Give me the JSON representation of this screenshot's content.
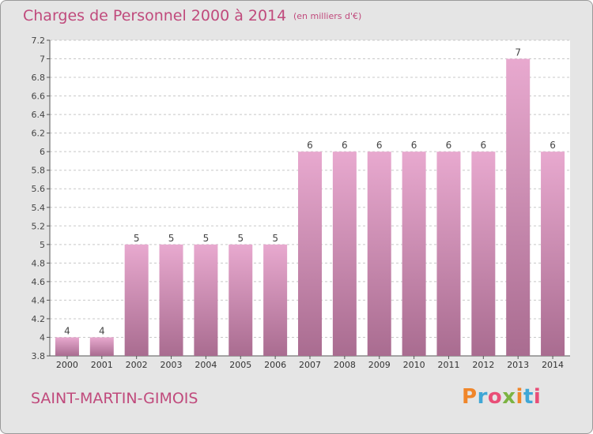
{
  "header": {
    "title": "Charges de Personnel 2000 à 2014",
    "subtitle": "(en milliers d'€)"
  },
  "footer": {
    "commune": "SAINT-MARTIN-GIMOIS",
    "brand": "Proxiti",
    "brand_colors": [
      "#f0862a",
      "#3fa7d6",
      "#e94e77",
      "#7cb342",
      "#f0862a",
      "#3fa7d6",
      "#e94e77"
    ]
  },
  "colors": {
    "background": "#e5e5e5",
    "plot_background": "#ffffff",
    "bar_top": "#e8a9cf",
    "bar_bottom": "#a96c90",
    "accent_text": "#c04a7c"
  },
  "chart_data": {
    "type": "bar",
    "title": "Charges de Personnel 2000 à 2014",
    "subtitle": "(en milliers d'€)",
    "categories": [
      "2000",
      "2001",
      "2002",
      "2003",
      "2004",
      "2005",
      "2006",
      "2007",
      "2008",
      "2009",
      "2010",
      "2011",
      "2012",
      "2013",
      "2014"
    ],
    "values": [
      4,
      4,
      5,
      5,
      5,
      5,
      5,
      6,
      6,
      6,
      6,
      6,
      6,
      7,
      6
    ],
    "data_labels": [
      "4",
      "4",
      "5",
      "5",
      "5",
      "5",
      "5",
      "6",
      "6",
      "6",
      "6",
      "6",
      "6",
      "7",
      "6"
    ],
    "ylim": [
      3.8,
      7.2
    ],
    "yticks": [
      3.8,
      4,
      4.2,
      4.4,
      4.6,
      4.8,
      5,
      5.2,
      5.4,
      5.6,
      5.8,
      6,
      6.2,
      6.4,
      6.6,
      6.8,
      7,
      7.2
    ],
    "ytick_labels": [
      "3.8",
      "4",
      "4.2",
      "4.4",
      "4.6",
      "4.8",
      "5",
      "5.2",
      "5.4",
      "5.6",
      "5.8",
      "6",
      "6.2",
      "6.4",
      "6.6",
      "6.8",
      "7",
      "7.2"
    ],
    "grid": "horizontal dashed",
    "legend": "none"
  }
}
